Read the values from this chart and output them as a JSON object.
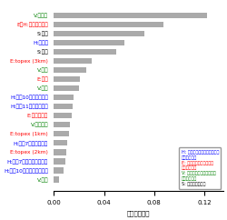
{
  "labels": [
    "V:優占種",
    "E・H:相対斜面方位",
    "S:経度",
    "H:総雨量",
    "S:緯度",
    "E:topex (3km)",
    "V:林齢",
    "E:母岩",
    "V:材積",
    "H:台風10号の最大風速",
    "H:台風11号の最大風速",
    "E:斜面傾斜角",
    "V:胸高直径",
    "E:topex (1km)",
    "H:台風7号の最大風速",
    "E:topex (2km)",
    "H:台風7号の強風持続時間",
    "H:台風10号の強風持続時間",
    "V:林種"
  ],
  "values": [
    0.122,
    0.087,
    0.072,
    0.056,
    0.05,
    0.03,
    0.026,
    0.021,
    0.02,
    0.016,
    0.015,
    0.014,
    0.013,
    0.012,
    0.011,
    0.01,
    0.009,
    0.008,
    0.004
  ],
  "label_colors": [
    "#008000",
    "#ff0000",
    "#000000",
    "#0000ff",
    "#000000",
    "#ff0000",
    "#008000",
    "#ff0000",
    "#008000",
    "#0000ff",
    "#0000ff",
    "#ff0000",
    "#008000",
    "#ff0000",
    "#0000ff",
    "#ff0000",
    "#0000ff",
    "#0000ff",
    "#008000"
  ],
  "bar_color": "#aaaaaa",
  "xlabel": "変数の重要度",
  "xlim": [
    0,
    0.135
  ],
  "xticks": [
    0.0,
    0.04,
    0.08,
    0.12
  ],
  "legend_items": [
    {
      "color": "#0000ff",
      "text": "H: ハザード関係のパラメータ\n（気象要因）"
    },
    {
      "color": "#ff0000",
      "text": "E: 暴露関係のパラメータ\n（地形要因）"
    },
    {
      "color": "#008000",
      "text": "V: 脆弱性関係のパラメータ\n（森林要因）"
    },
    {
      "color": "#000000",
      "text": "S: 空間パラメータ"
    }
  ]
}
